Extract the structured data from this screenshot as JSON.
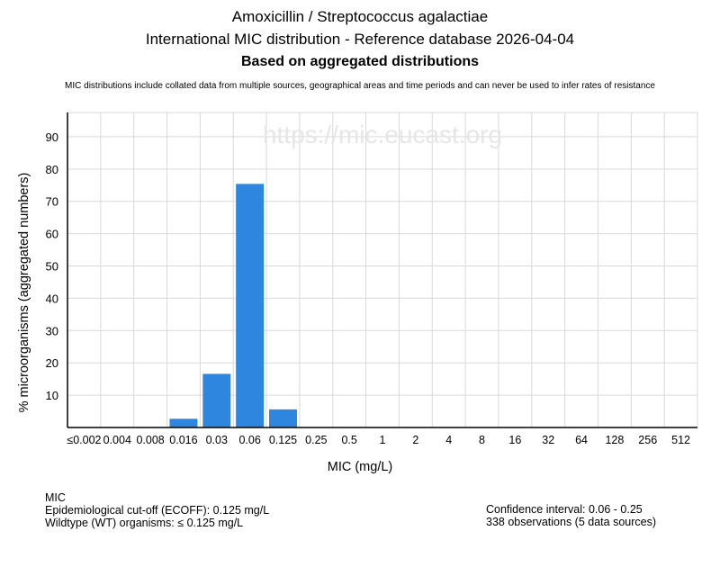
{
  "titles": {
    "line1": "Amoxicillin / Streptococcus agalactiae",
    "line2": "International MIC distribution - Reference database 2026-04-04",
    "line3": "Based on aggregated distributions"
  },
  "note": "MIC distributions include collated data from multiple sources, geographical areas and time periods and can never be used to infer rates of resistance",
  "watermark": "https://mic.eucast.org",
  "footer": {
    "left": {
      "heading": "MIC",
      "ecoff": "Epidemiological cut-off (ECOFF): 0.125 mg/L",
      "wt": "Wildtype (WT) organisms: ≤ 0.125 mg/L"
    },
    "right": {
      "ci": "Confidence interval: 0.06 - 0.25",
      "obs": "338 observations (5 data sources)"
    }
  },
  "colors": {
    "bar": "#2e86de",
    "grid": "#d9d9d9",
    "watermark": "#e6e6e6"
  },
  "chart_data": {
    "type": "bar",
    "categories": [
      "≤0.002",
      "0.004",
      "0.008",
      "0.016",
      "0.03",
      "0.06",
      "0.125",
      "0.25",
      "0.5",
      "1",
      "2",
      "4",
      "8",
      "16",
      "32",
      "64",
      "128",
      "256",
      "512"
    ],
    "values": [
      0,
      0,
      0,
      2.7,
      16.6,
      75.4,
      5.6,
      0,
      0,
      0,
      0,
      0,
      0,
      0,
      0,
      0,
      0,
      0,
      0
    ],
    "xlabel": "MIC (mg/L)",
    "ylabel": "% microorganisms (aggregated numbers)",
    "ylim": [
      0,
      97.5
    ],
    "yticks": [
      10,
      20,
      30,
      40,
      50,
      60,
      70,
      80,
      90
    ],
    "grid": true
  }
}
